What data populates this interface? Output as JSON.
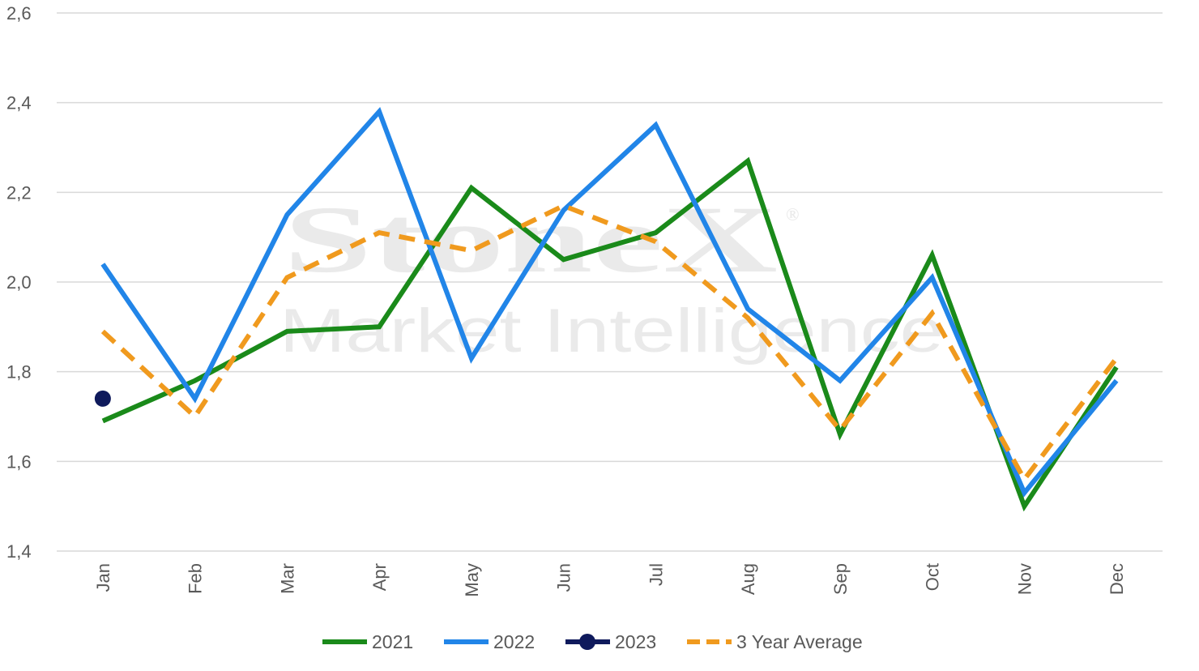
{
  "watermark": {
    "brand": "StoneX",
    "registered": "®",
    "subtitle": "Market Intelligence"
  },
  "chart_data": {
    "type": "line",
    "title": "",
    "xlabel": "",
    "ylabel": "",
    "categories": [
      "Jan",
      "Feb",
      "Mar",
      "Apr",
      "May",
      "Jun",
      "Jul",
      "Aug",
      "Sep",
      "Oct",
      "Nov",
      "Dec"
    ],
    "ylim": [
      1.4,
      2.6
    ],
    "yticks": [
      1.4,
      1.6,
      1.8,
      2.0,
      2.2,
      2.4,
      2.6
    ],
    "ytick_labels": [
      "1,4",
      "1,6",
      "1,8",
      "2,0",
      "2,2",
      "2,4",
      "2,6"
    ],
    "grid": "horizontal",
    "legend_position": "bottom",
    "series": [
      {
        "name": "2021",
        "color": "#1A8A1A",
        "style": "solid",
        "values": [
          1.69,
          1.78,
          1.89,
          1.9,
          2.21,
          2.05,
          2.11,
          2.27,
          1.66,
          2.06,
          1.5,
          1.81
        ]
      },
      {
        "name": "2022",
        "color": "#2185E8",
        "style": "solid",
        "values": [
          2.04,
          1.74,
          2.15,
          2.38,
          1.83,
          2.16,
          2.35,
          1.94,
          1.78,
          2.01,
          1.53,
          1.78
        ]
      },
      {
        "name": "2023",
        "color": "#0F1A5C",
        "style": "marker",
        "values": [
          1.74,
          null,
          null,
          null,
          null,
          null,
          null,
          null,
          null,
          null,
          null,
          null
        ]
      },
      {
        "name": "3 Year Average",
        "color": "#F09A1E",
        "style": "dashed",
        "values": [
          1.89,
          1.7,
          2.01,
          2.11,
          2.07,
          2.17,
          2.09,
          1.92,
          1.67,
          1.93,
          1.56,
          1.83
        ]
      }
    ]
  }
}
